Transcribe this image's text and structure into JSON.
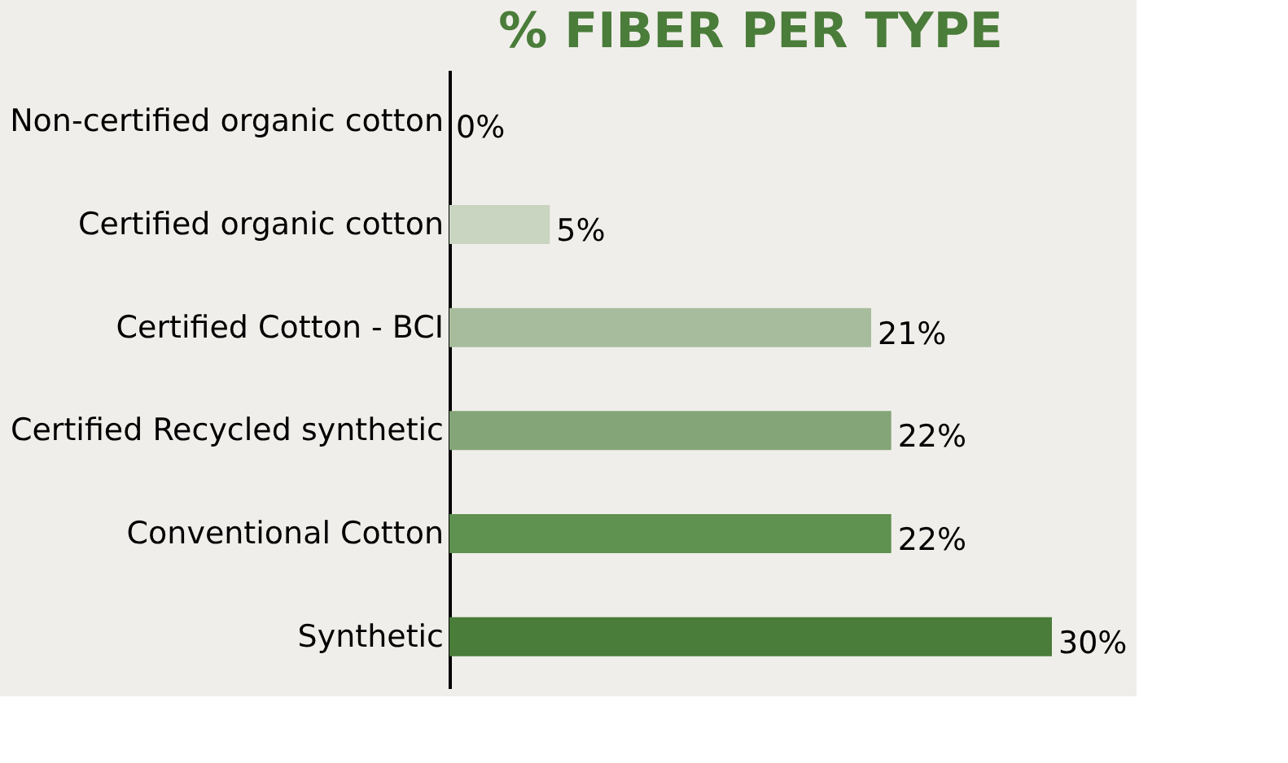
{
  "chart_data": {
    "type": "bar",
    "orientation": "horizontal",
    "title": "% FIBER PER TYPE",
    "categories": [
      "Non-certified organic cotton",
      "Certified organic cotton",
      "Certified Cotton - BCI",
      "Certified Recycled synthetic",
      "Conventional Cotton",
      "Synthetic"
    ],
    "values": [
      0,
      5,
      21,
      22,
      22,
      30
    ],
    "colors": [
      "#d9e2d2",
      "#c9d5c0",
      "#a7bc9c",
      "#84a577",
      "#5f9150",
      "#4a7c3a"
    ],
    "value_labels": [
      "0%",
      "5%",
      "21%",
      "22%",
      "22%",
      "30%"
    ],
    "xlim": [
      0,
      30
    ],
    "tick_labels": "y",
    "grid": false
  }
}
